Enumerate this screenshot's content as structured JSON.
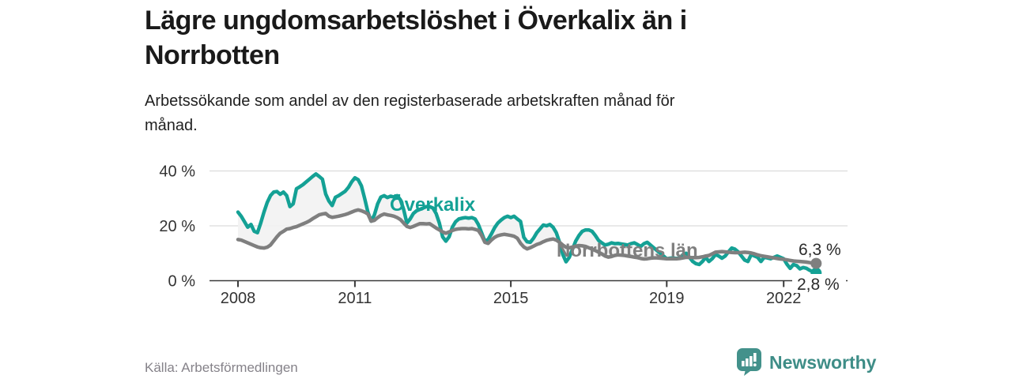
{
  "header": {
    "title": "Lägre ungdomsarbetslöshet i Överkalix än i\nNorrbotten",
    "subtitle": "Arbetssökande som andel av den registerbaserade arbetskraften månad för\nmånad."
  },
  "footer": {
    "source": "Källa: Arbetsförmedlingen",
    "brand": "Newsworthy"
  },
  "chart_data": {
    "type": "line",
    "x_start": "2008-01",
    "x_end": "2022-11",
    "x_interval": "monthly",
    "ylim": [
      0,
      42
    ],
    "grid": "horizontal",
    "y_ticks": [
      {
        "value": 0,
        "label": "0 %"
      },
      {
        "value": 20,
        "label": "20 %"
      },
      {
        "value": 40,
        "label": "40 %"
      }
    ],
    "x_ticks": [
      {
        "year": 2008,
        "label": "2008"
      },
      {
        "year": 2011,
        "label": "2011"
      },
      {
        "year": 2015,
        "label": "2015"
      },
      {
        "year": 2019,
        "label": "2019"
      },
      {
        "year": 2022,
        "label": "2022"
      }
    ],
    "colors": {
      "overkalix": "#14a195",
      "norrbotten": "#7f7f7f",
      "fill": "#f2f2f2",
      "axis": "#3a3a3a",
      "grid": "#dcdcdc",
      "text": "#333333",
      "value_label": "#2b2b2b"
    },
    "series": [
      {
        "id": "overkalix",
        "name": "Överkalix",
        "color": "#14a195",
        "end_value_label": "2,8 %",
        "values": [
          25.0,
          23.5,
          21.5,
          19.5,
          20.5,
          18.0,
          17.5,
          21.0,
          25.0,
          28.5,
          31.0,
          32.3,
          32.5,
          31.5,
          32.3,
          31.0,
          27.0,
          28.0,
          33.5,
          34.2,
          35.0,
          36.0,
          37.0,
          38.0,
          38.9,
          38.0,
          37.0,
          31.6,
          29.0,
          27.4,
          30.4,
          31.0,
          31.8,
          32.6,
          34.0,
          36.0,
          37.5,
          36.8,
          34.6,
          30.0,
          25.0,
          21.7,
          24.0,
          28.0,
          30.5,
          31.0,
          30.3,
          30.8,
          30.5,
          31.0,
          29.5,
          26.0,
          21.0,
          22.5,
          24.5,
          25.5,
          26.0,
          26.5,
          27.0,
          27.0,
          26.5,
          24.5,
          21.0,
          16.0,
          14.4,
          16.0,
          19.5,
          21.5,
          22.5,
          22.8,
          23.0,
          22.8,
          23.0,
          22.5,
          20.5,
          17.5,
          14.4,
          15.0,
          17.0,
          19.3,
          21.0,
          22.1,
          23.0,
          23.5,
          23.0,
          23.5,
          22.5,
          21.6,
          15.8,
          14.2,
          14.0,
          15.5,
          17.5,
          18.9,
          20.3,
          20.0,
          20.5,
          19.5,
          17.5,
          14.0,
          9.5,
          6.9,
          8.5,
          11.5,
          14.5,
          16.5,
          18.0,
          18.5,
          18.5,
          18.0,
          16.5,
          14.7,
          13.8,
          13.0,
          13.3,
          13.8,
          13.5,
          13.6,
          13.4,
          13.2,
          13.0,
          13.5,
          13.8,
          13.2,
          12.5,
          13.5,
          14.0,
          13.0,
          12.0,
          11.0,
          10.0,
          9.0,
          8.0,
          8.2,
          8.3,
          8.1,
          8.3,
          9.5,
          10.0,
          8.5,
          7.0,
          6.2,
          5.9,
          7.0,
          8.5,
          7.0,
          8.0,
          9.5,
          9.0,
          8.2,
          9.0,
          10.5,
          11.9,
          11.5,
          10.5,
          9.0,
          7.5,
          7.0,
          9.5,
          9.0,
          8.5,
          7.0,
          8.5,
          8.3,
          8.0,
          8.5,
          9.0,
          8.5,
          8.0,
          6.0,
          4.5,
          5.9,
          5.5,
          4.3,
          4.8,
          4.5,
          3.8,
          3.2,
          2.8
        ]
      },
      {
        "id": "norrbotten",
        "name": "Norrbottens län",
        "color": "#7f7f7f",
        "end_value_label": "6,3 %",
        "values": [
          15.0,
          14.8,
          14.3,
          13.8,
          13.3,
          12.8,
          12.3,
          12.0,
          11.9,
          12.2,
          13.0,
          14.5,
          16.0,
          17.3,
          18.0,
          18.8,
          19.0,
          19.4,
          19.7,
          20.2,
          20.7,
          21.2,
          21.8,
          22.6,
          23.3,
          24.0,
          24.3,
          24.5,
          23.5,
          23.1,
          23.3,
          23.5,
          23.8,
          24.1,
          24.5,
          25.0,
          25.5,
          25.8,
          25.5,
          25.0,
          24.3,
          21.7,
          22.0,
          23.0,
          23.8,
          24.3,
          24.0,
          23.8,
          23.5,
          23.0,
          22.3,
          21.0,
          19.8,
          19.4,
          19.8,
          20.3,
          20.8,
          20.8,
          20.7,
          20.8,
          20.0,
          19.2,
          18.5,
          17.8,
          17.3,
          17.8,
          18.3,
          18.7,
          18.9,
          19.0,
          19.0,
          18.9,
          19.0,
          18.7,
          18.3,
          16.5,
          14.0,
          13.6,
          14.8,
          15.8,
          16.4,
          16.7,
          16.9,
          16.7,
          16.5,
          16.2,
          15.5,
          13.6,
          12.3,
          11.6,
          12.0,
          12.6,
          13.2,
          13.6,
          14.2,
          14.7,
          15.0,
          15.2,
          14.8,
          14.0,
          13.0,
          12.2,
          12.0,
          12.3,
          12.6,
          12.8,
          12.7,
          12.5,
          12.0,
          11.5,
          11.0,
          10.4,
          9.8,
          9.0,
          8.6,
          8.8,
          9.2,
          9.4,
          9.3,
          9.2,
          9.0,
          8.8,
          8.6,
          8.4,
          8.1,
          7.9,
          8.0,
          8.2,
          8.3,
          8.3,
          8.2,
          8.1,
          8.0,
          8.0,
          8.0,
          8.0,
          8.1,
          8.3,
          8.5,
          8.5,
          8.4,
          8.4,
          8.5,
          8.7,
          9.0,
          9.2,
          9.8,
          10.4,
          10.5,
          10.6,
          10.5,
          10.4,
          10.3,
          10.2,
          10.2,
          10.3,
          10.4,
          10.3,
          10.1,
          9.8,
          9.4,
          9.1,
          8.9,
          8.7,
          8.5,
          8.3,
          8.1,
          7.9,
          7.8,
          7.6,
          7.4,
          7.2,
          7.1,
          7.0,
          6.9,
          6.8,
          6.6,
          6.4,
          6.3
        ]
      }
    ],
    "annotations": {
      "overkalix_label": {
        "text": "Överkalix",
        "color": "#14a195"
      },
      "norrbotten_label": {
        "text": "Norrbottens län",
        "color": "#7f7f7f"
      },
      "overkalix_end": {
        "text": "2,8 %",
        "color": "#2b2b2b"
      },
      "norrbotten_end": {
        "text": "6,3 %",
        "color": "#2b2b2b"
      }
    }
  }
}
